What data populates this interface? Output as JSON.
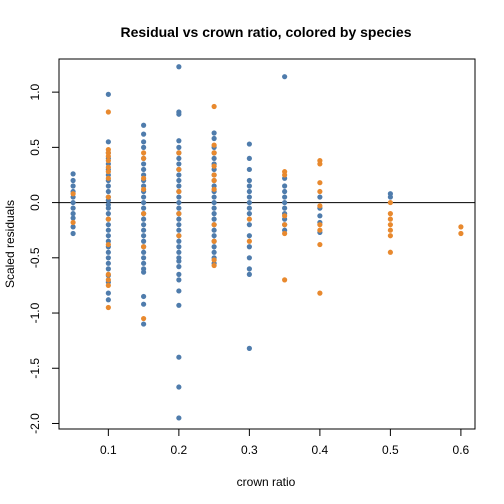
{
  "chart_data": {
    "type": "scatter",
    "title": "Residual vs crown ratio, colored by species",
    "xlabel": "crown ratio",
    "ylabel": "Scaled residuals",
    "xlim": [
      0.03,
      0.62
    ],
    "ylim": [
      -2.05,
      1.3
    ],
    "x_ticks": [
      {
        "value": 0.1,
        "label": "0.1"
      },
      {
        "value": 0.2,
        "label": "0.2"
      },
      {
        "value": 0.3,
        "label": "0.3"
      },
      {
        "value": 0.4,
        "label": "0.4"
      },
      {
        "value": 0.5,
        "label": "0.5"
      },
      {
        "value": 0.6,
        "label": "0.6"
      }
    ],
    "y_ticks": [
      {
        "value": -2.0,
        "label": "-2.0"
      },
      {
        "value": -1.5,
        "label": "-1.5"
      },
      {
        "value": -1.0,
        "label": "-1.0"
      },
      {
        "value": -0.5,
        "label": "-0.5"
      },
      {
        "value": 0.0,
        "label": "0.0"
      },
      {
        "value": 0.5,
        "label": "0.5"
      },
      {
        "value": 1.0,
        "label": "1.0"
      }
    ],
    "reference_line": {
      "y": 0
    },
    "grid": false,
    "legend": "none",
    "series": [
      {
        "color": "#4f7cac",
        "points": [
          [
            0.05,
            0.26
          ],
          [
            0.05,
            0.2
          ],
          [
            0.05,
            0.15
          ],
          [
            0.05,
            0.1
          ],
          [
            0.05,
            0.05
          ],
          [
            0.05,
            0.0
          ],
          [
            0.05,
            -0.05
          ],
          [
            0.05,
            -0.1
          ],
          [
            0.05,
            -0.14
          ],
          [
            0.05,
            -0.22
          ],
          [
            0.05,
            -0.28
          ],
          [
            0.1,
            0.98
          ],
          [
            0.1,
            0.55
          ],
          [
            0.1,
            0.45
          ],
          [
            0.1,
            0.4
          ],
          [
            0.1,
            0.35
          ],
          [
            0.1,
            0.3
          ],
          [
            0.1,
            0.25
          ],
          [
            0.1,
            0.2
          ],
          [
            0.1,
            0.15
          ],
          [
            0.1,
            0.1
          ],
          [
            0.1,
            0.05
          ],
          [
            0.1,
            0.02
          ],
          [
            0.1,
            -0.02
          ],
          [
            0.1,
            -0.05
          ],
          [
            0.1,
            -0.1
          ],
          [
            0.1,
            -0.15
          ],
          [
            0.1,
            -0.2
          ],
          [
            0.1,
            -0.25
          ],
          [
            0.1,
            -0.3
          ],
          [
            0.1,
            -0.35
          ],
          [
            0.1,
            -0.4
          ],
          [
            0.1,
            -0.45
          ],
          [
            0.1,
            -0.5
          ],
          [
            0.1,
            -0.55
          ],
          [
            0.1,
            -0.6
          ],
          [
            0.1,
            -0.66
          ],
          [
            0.1,
            -0.72
          ],
          [
            0.1,
            -0.82
          ],
          [
            0.1,
            -0.88
          ],
          [
            0.15,
            0.7
          ],
          [
            0.15,
            0.62
          ],
          [
            0.15,
            0.55
          ],
          [
            0.15,
            0.5
          ],
          [
            0.15,
            0.4
          ],
          [
            0.15,
            0.35
          ],
          [
            0.15,
            0.3
          ],
          [
            0.15,
            0.25
          ],
          [
            0.15,
            0.2
          ],
          [
            0.15,
            0.15
          ],
          [
            0.15,
            0.1
          ],
          [
            0.15,
            0.05
          ],
          [
            0.15,
            0.0
          ],
          [
            0.15,
            -0.05
          ],
          [
            0.15,
            -0.1
          ],
          [
            0.15,
            -0.15
          ],
          [
            0.15,
            -0.2
          ],
          [
            0.15,
            -0.25
          ],
          [
            0.15,
            -0.3
          ],
          [
            0.15,
            -0.35
          ],
          [
            0.15,
            -0.4
          ],
          [
            0.15,
            -0.45
          ],
          [
            0.15,
            -0.5
          ],
          [
            0.15,
            -0.55
          ],
          [
            0.15,
            -0.6
          ],
          [
            0.15,
            -0.63
          ],
          [
            0.15,
            -0.85
          ],
          [
            0.15,
            -0.92
          ],
          [
            0.15,
            -1.1
          ],
          [
            0.2,
            1.23
          ],
          [
            0.2,
            0.82
          ],
          [
            0.2,
            0.8
          ],
          [
            0.2,
            0.56
          ],
          [
            0.2,
            0.5
          ],
          [
            0.2,
            0.45
          ],
          [
            0.2,
            0.4
          ],
          [
            0.2,
            0.35
          ],
          [
            0.2,
            0.3
          ],
          [
            0.2,
            0.25
          ],
          [
            0.2,
            0.2
          ],
          [
            0.2,
            0.15
          ],
          [
            0.2,
            0.1
          ],
          [
            0.2,
            0.05
          ],
          [
            0.2,
            0.0
          ],
          [
            0.2,
            -0.05
          ],
          [
            0.2,
            -0.1
          ],
          [
            0.2,
            -0.15
          ],
          [
            0.2,
            -0.2
          ],
          [
            0.2,
            -0.25
          ],
          [
            0.2,
            -0.3
          ],
          [
            0.2,
            -0.35
          ],
          [
            0.2,
            -0.4
          ],
          [
            0.2,
            -0.45
          ],
          [
            0.2,
            -0.5
          ],
          [
            0.2,
            -0.53
          ],
          [
            0.2,
            -0.58
          ],
          [
            0.2,
            -0.65
          ],
          [
            0.2,
            -0.7
          ],
          [
            0.2,
            -0.8
          ],
          [
            0.2,
            -0.93
          ],
          [
            0.2,
            -1.4
          ],
          [
            0.2,
            -1.67
          ],
          [
            0.2,
            -1.95
          ],
          [
            0.25,
            0.63
          ],
          [
            0.25,
            0.58
          ],
          [
            0.25,
            0.5
          ],
          [
            0.25,
            0.45
          ],
          [
            0.25,
            0.4
          ],
          [
            0.25,
            0.35
          ],
          [
            0.25,
            0.3
          ],
          [
            0.25,
            0.25
          ],
          [
            0.25,
            0.2
          ],
          [
            0.25,
            0.15
          ],
          [
            0.25,
            0.1
          ],
          [
            0.25,
            0.05
          ],
          [
            0.25,
            0.0
          ],
          [
            0.25,
            -0.05
          ],
          [
            0.25,
            -0.1
          ],
          [
            0.25,
            -0.15
          ],
          [
            0.25,
            -0.2
          ],
          [
            0.25,
            -0.25
          ],
          [
            0.25,
            -0.3
          ],
          [
            0.25,
            -0.35
          ],
          [
            0.25,
            -0.4
          ],
          [
            0.25,
            -0.45
          ],
          [
            0.25,
            -0.5
          ],
          [
            0.25,
            -0.55
          ],
          [
            0.3,
            0.53
          ],
          [
            0.3,
            0.4
          ],
          [
            0.3,
            0.3
          ],
          [
            0.3,
            0.2
          ],
          [
            0.3,
            0.15
          ],
          [
            0.3,
            0.1
          ],
          [
            0.3,
            0.05
          ],
          [
            0.3,
            0.0
          ],
          [
            0.3,
            -0.05
          ],
          [
            0.3,
            -0.1
          ],
          [
            0.3,
            -0.2
          ],
          [
            0.3,
            -0.3
          ],
          [
            0.3,
            -0.4
          ],
          [
            0.3,
            -0.5
          ],
          [
            0.3,
            -0.6
          ],
          [
            0.3,
            -0.65
          ],
          [
            0.3,
            -1.32
          ],
          [
            0.35,
            1.14
          ],
          [
            0.35,
            0.22
          ],
          [
            0.35,
            0.15
          ],
          [
            0.35,
            0.1
          ],
          [
            0.35,
            0.05
          ],
          [
            0.35,
            0.0
          ],
          [
            0.35,
            -0.05
          ],
          [
            0.35,
            -0.1
          ],
          [
            0.35,
            -0.15
          ],
          [
            0.35,
            -0.2
          ],
          [
            0.35,
            -0.25
          ],
          [
            0.4,
            0.05
          ],
          [
            0.4,
            -0.05
          ],
          [
            0.4,
            -0.12
          ],
          [
            0.4,
            -0.18
          ],
          [
            0.4,
            -0.27
          ],
          [
            0.5,
            0.08
          ],
          [
            0.5,
            0.05
          ]
        ]
      },
      {
        "color": "#e8892e",
        "points": [
          [
            0.05,
            0.08
          ],
          [
            0.05,
            -0.18
          ],
          [
            0.1,
            0.82
          ],
          [
            0.1,
            0.48
          ],
          [
            0.1,
            0.45
          ],
          [
            0.1,
            0.42
          ],
          [
            0.1,
            0.38
          ],
          [
            0.1,
            0.32
          ],
          [
            0.1,
            0.28
          ],
          [
            0.1,
            0.22
          ],
          [
            0.1,
            0.05
          ],
          [
            0.1,
            -0.15
          ],
          [
            0.1,
            -0.38
          ],
          [
            0.1,
            -0.65
          ],
          [
            0.1,
            -0.7
          ],
          [
            0.1,
            -0.75
          ],
          [
            0.1,
            -0.95
          ],
          [
            0.15,
            0.45
          ],
          [
            0.15,
            0.4
          ],
          [
            0.15,
            0.22
          ],
          [
            0.15,
            0.12
          ],
          [
            0.15,
            -0.1
          ],
          [
            0.15,
            -0.4
          ],
          [
            0.15,
            -1.05
          ],
          [
            0.2,
            0.45
          ],
          [
            0.2,
            0.3
          ],
          [
            0.2,
            0.1
          ],
          [
            0.2,
            -0.1
          ],
          [
            0.2,
            -0.3
          ],
          [
            0.25,
            0.87
          ],
          [
            0.25,
            0.52
          ],
          [
            0.25,
            0.45
          ],
          [
            0.25,
            0.33
          ],
          [
            0.25,
            0.25
          ],
          [
            0.25,
            0.2
          ],
          [
            0.25,
            0.12
          ],
          [
            0.25,
            -0.2
          ],
          [
            0.25,
            -0.35
          ],
          [
            0.25,
            -0.52
          ],
          [
            0.25,
            -0.57
          ],
          [
            0.3,
            -0.15
          ],
          [
            0.3,
            -0.35
          ],
          [
            0.35,
            0.28
          ],
          [
            0.35,
            0.25
          ],
          [
            0.35,
            -0.12
          ],
          [
            0.35,
            -0.2
          ],
          [
            0.35,
            -0.28
          ],
          [
            0.35,
            -0.7
          ],
          [
            0.4,
            0.38
          ],
          [
            0.4,
            0.35
          ],
          [
            0.4,
            0.18
          ],
          [
            0.4,
            0.1
          ],
          [
            0.4,
            -0.03
          ],
          [
            0.4,
            -0.2
          ],
          [
            0.4,
            -0.25
          ],
          [
            0.4,
            -0.38
          ],
          [
            0.4,
            -0.82
          ],
          [
            0.5,
            0.0
          ],
          [
            0.5,
            -0.1
          ],
          [
            0.5,
            -0.15
          ],
          [
            0.5,
            -0.2
          ],
          [
            0.5,
            -0.25
          ],
          [
            0.5,
            -0.3
          ],
          [
            0.5,
            -0.45
          ],
          [
            0.6,
            -0.22
          ],
          [
            0.6,
            -0.28
          ]
        ]
      }
    ]
  }
}
